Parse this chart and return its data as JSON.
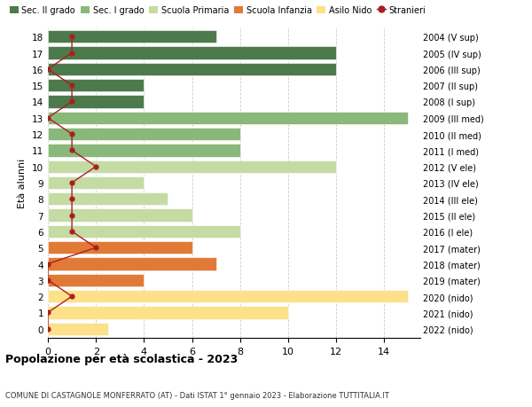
{
  "ages": [
    0,
    1,
    2,
    3,
    4,
    5,
    6,
    7,
    8,
    9,
    10,
    11,
    12,
    13,
    14,
    15,
    16,
    17,
    18
  ],
  "right_labels": [
    "2022 (nido)",
    "2021 (nido)",
    "2020 (nido)",
    "2019 (mater)",
    "2018 (mater)",
    "2017 (mater)",
    "2016 (I ele)",
    "2015 (II ele)",
    "2014 (III ele)",
    "2013 (IV ele)",
    "2012 (V ele)",
    "2011 (I med)",
    "2010 (II med)",
    "2009 (III med)",
    "2008 (I sup)",
    "2007 (II sup)",
    "2006 (III sup)",
    "2005 (IV sup)",
    "2004 (V sup)"
  ],
  "bar_values": [
    2.5,
    10,
    15,
    4,
    7,
    6,
    8,
    6,
    5,
    4,
    12,
    8,
    8,
    15,
    4,
    4,
    12,
    12,
    7
  ],
  "bar_colors": [
    "#fce08a",
    "#fce08a",
    "#fce08a",
    "#e07a36",
    "#e07a36",
    "#e07a36",
    "#c5dba4",
    "#c5dba4",
    "#c5dba4",
    "#c5dba4",
    "#c5dba4",
    "#8ab87a",
    "#8ab87a",
    "#8ab87a",
    "#4d7a4d",
    "#4d7a4d",
    "#4d7a4d",
    "#4d7a4d",
    "#4d7a4d"
  ],
  "stranieri_x": [
    0,
    0,
    1,
    0,
    0,
    2,
    1,
    1,
    1,
    1,
    2,
    1,
    1,
    0,
    1,
    1,
    0,
    1,
    1
  ],
  "title": "Popolazione per età scolastica - 2023",
  "subtitle": "COMUNE DI CASTAGNOLE MONFERRATO (AT) - Dati ISTAT 1° gennaio 2023 - Elaborazione TUTTITALIA.IT",
  "ylabel": "Età alunni",
  "legend_entries": [
    {
      "label": "Sec. II grado",
      "color": "#4d7a4d"
    },
    {
      "label": "Sec. I grado",
      "color": "#8ab87a"
    },
    {
      "label": "Scuola Primaria",
      "color": "#c5dba4"
    },
    {
      "label": "Scuola Infanzia",
      "color": "#e07a36"
    },
    {
      "label": "Asilo Nido",
      "color": "#fce08a"
    },
    {
      "label": "Stranieri",
      "color": "#aa2020"
    }
  ],
  "xlim": [
    0,
    15.5
  ],
  "ylim": [
    -0.55,
    18.55
  ],
  "xticks": [
    0,
    2,
    4,
    6,
    8,
    10,
    12,
    14
  ],
  "grid_color": "#cccccc",
  "bar_height": 0.78
}
